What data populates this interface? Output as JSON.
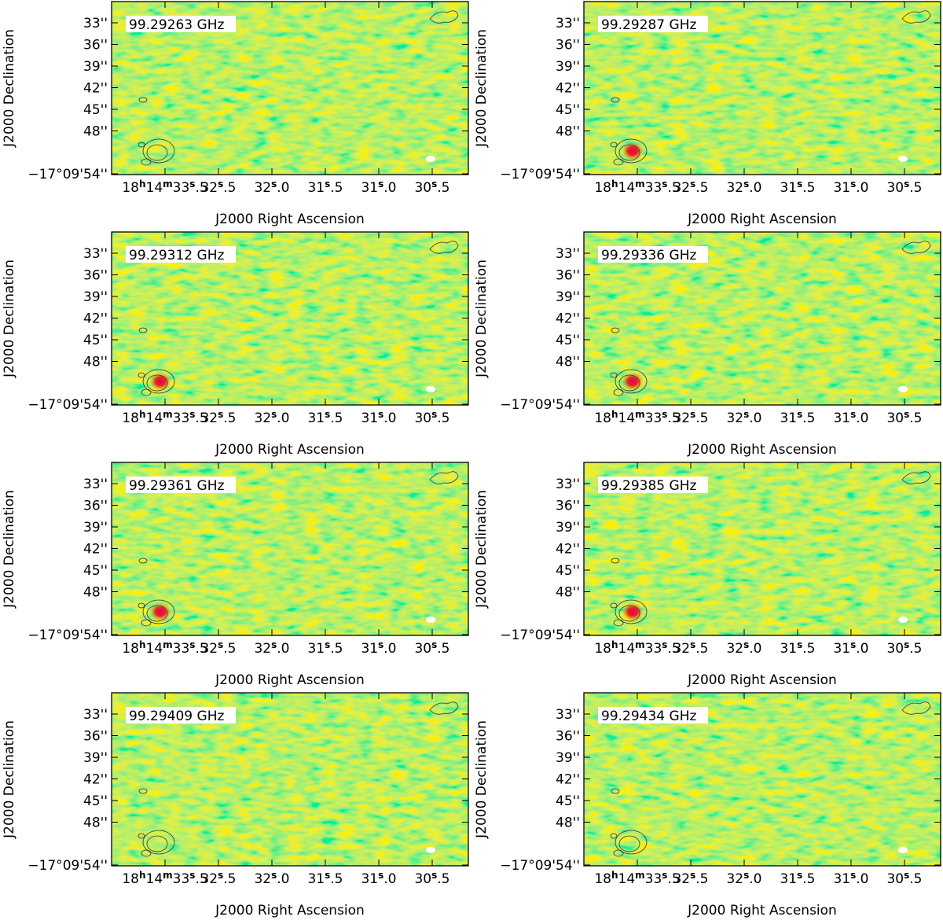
{
  "panels": [
    {
      "label": "99.29263 GHz"
    },
    {
      "label": "99.29287 GHz"
    },
    {
      "label": "99.29312 GHz"
    },
    {
      "label": "99.29336 GHz"
    },
    {
      "label": "99.29361 GHz"
    },
    {
      "label": "99.29385 GHz"
    },
    {
      "label": "99.29409 GHz"
    },
    {
      "label": "99.29434 GHz"
    }
  ],
  "x_axis_label": "J2000 Right Ascension",
  "y_axis_label": "J2000 Declination",
  "x_ticks": [
    [
      "18",
      "h",
      "14",
      "m",
      "33",
      "s",
      ".5"
    ],
    [
      "32",
      "s",
      ".5"
    ],
    [
      "32",
      "s",
      ".0"
    ],
    [
      "31",
      "s",
      ".5"
    ],
    [
      "31",
      "s",
      ".0"
    ],
    [
      "30",
      "s",
      ".5"
    ]
  ],
  "y_ticks": [
    "33''",
    "36''",
    "39''",
    "42''",
    "45''",
    "48''",
    "−17°09'54''"
  ]
}
